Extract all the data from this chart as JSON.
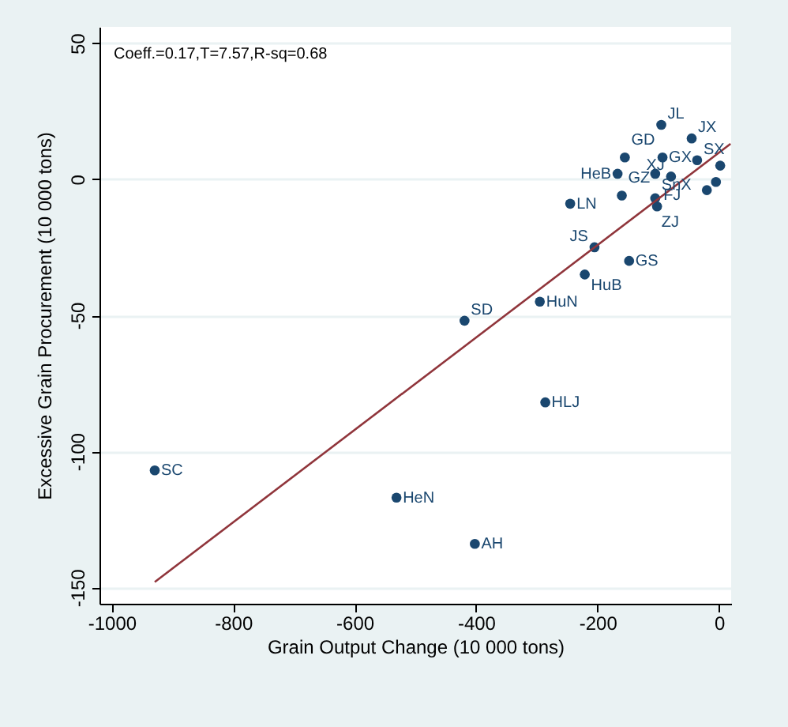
{
  "chart_data": {
    "type": "scatter",
    "xlabel": "Grain Output Change (10 000 tons)",
    "ylabel": "Excessive Grain Procurement (10 000 tons)",
    "xlim": [
      -1020,
      20
    ],
    "ylim": [
      -156,
      56
    ],
    "xticks": [
      {
        "value": -1000,
        "label": "-1000"
      },
      {
        "value": -800,
        "label": "-800"
      },
      {
        "value": -600,
        "label": "-600"
      },
      {
        "value": -400,
        "label": "-400"
      },
      {
        "value": -200,
        "label": "-200"
      },
      0
    ],
    "yticks": [
      -150,
      -100,
      -50,
      0,
      50
    ],
    "grid": "y",
    "marker": "circle",
    "series": [
      {
        "color": "#1a476f",
        "x": [
          -929,
          -531,
          -402,
          -286,
          -419,
          -295,
          -221,
          -205,
          -148,
          -245,
          -160,
          -105,
          -102,
          -95,
          -45,
          -155,
          -93,
          -36,
          -167,
          -105,
          -79,
          2,
          -5,
          -20
        ],
        "values": [
          -107,
          -117,
          -134,
          -82,
          -52,
          -45,
          -35,
          -25,
          -30,
          -9,
          -6,
          -7,
          -10,
          20,
          15,
          8,
          8,
          7,
          2,
          2,
          1,
          5,
          -1,
          -4
        ]
      },
      {
        "type": "line",
        "color": "#90353b",
        "x": [
          -929,
          19
        ],
        "values": [
          -148,
          13
        ],
        "marker": "none"
      }
    ],
    "annotations": [
      "Coeff.=0.17,T=7.57,R-sq=0.68",
      {
        "text": "SC",
        "x": -929,
        "y": -107
      },
      {
        "text": "HeN",
        "x": -531,
        "y": -117
      },
      {
        "text": "AH",
        "x": -402,
        "y": -134
      },
      {
        "text": "HLJ",
        "x": -286,
        "y": -82
      },
      {
        "text": "SD",
        "x": -419,
        "y": -52
      },
      {
        "text": "HuN",
        "x": -295,
        "y": -45
      },
      {
        "text": "HuB",
        "x": -221,
        "y": -35
      },
      {
        "text": "JS",
        "x": -205,
        "y": -25
      },
      {
        "text": "GS",
        "x": -148,
        "y": -30
      },
      {
        "text": "LN",
        "x": -245,
        "y": -9
      },
      {
        "text": "GZ",
        "x": -160,
        "y": -6
      },
      {
        "text": "ZJ",
        "x": -105,
        "y": -7
      },
      {
        "text": "FJ",
        "x": -102,
        "y": -10
      },
      {
        "text": "JL",
        "x": -95,
        "y": 20
      },
      {
        "text": "JX",
        "x": -45,
        "y": 15
      },
      {
        "text": "GD",
        "x": -155,
        "y": 8
      },
      {
        "text": "GX",
        "x": -93,
        "y": 8
      },
      {
        "text": "SX",
        "x": -36,
        "y": 7
      },
      {
        "text": "HeB",
        "x": -167,
        "y": 2
      },
      {
        "text": "SnX",
        "x": -105,
        "y": 2
      },
      {
        "text": "XJ",
        "x": -79,
        "y": 1
      }
    ]
  }
}
